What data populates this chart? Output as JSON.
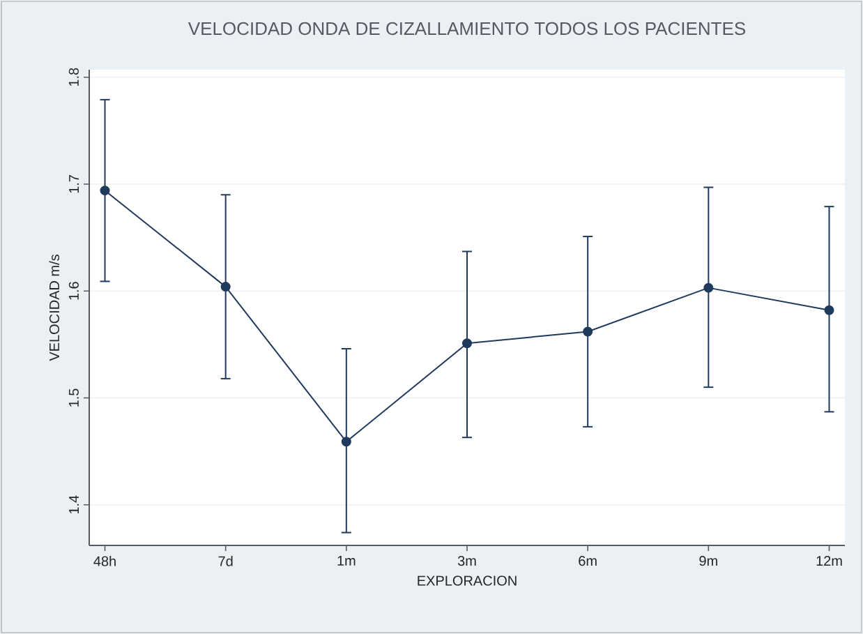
{
  "chart_data": {
    "type": "line",
    "title": "VELOCIDAD ONDA DE CIZALLAMIENTO TODOS LOS PACIENTES",
    "xlabel": "EXPLORACION",
    "ylabel": "VELOCIDAD m/s",
    "categories": [
      "48h",
      "7d",
      "1m",
      "3m",
      "6m",
      "9m",
      "12m"
    ],
    "series": [
      {
        "color": "#1f3a5c",
        "values": [
          1.694,
          1.604,
          1.459,
          1.551,
          1.562,
          1.603,
          1.582
        ],
        "errors": [
          [
            1.609,
            1.779
          ],
          [
            1.518,
            1.69
          ],
          [
            1.374,
            1.546
          ],
          [
            1.463,
            1.637
          ],
          [
            1.473,
            1.651
          ],
          [
            1.51,
            1.697
          ],
          [
            1.487,
            1.679
          ]
        ]
      }
    ],
    "ylim": [
      1.362,
      1.807
    ],
    "yticks": [
      1.4,
      1.5,
      1.6,
      1.7,
      1.8
    ],
    "grid": "y",
    "marker": "circle",
    "line_style": "solid"
  }
}
